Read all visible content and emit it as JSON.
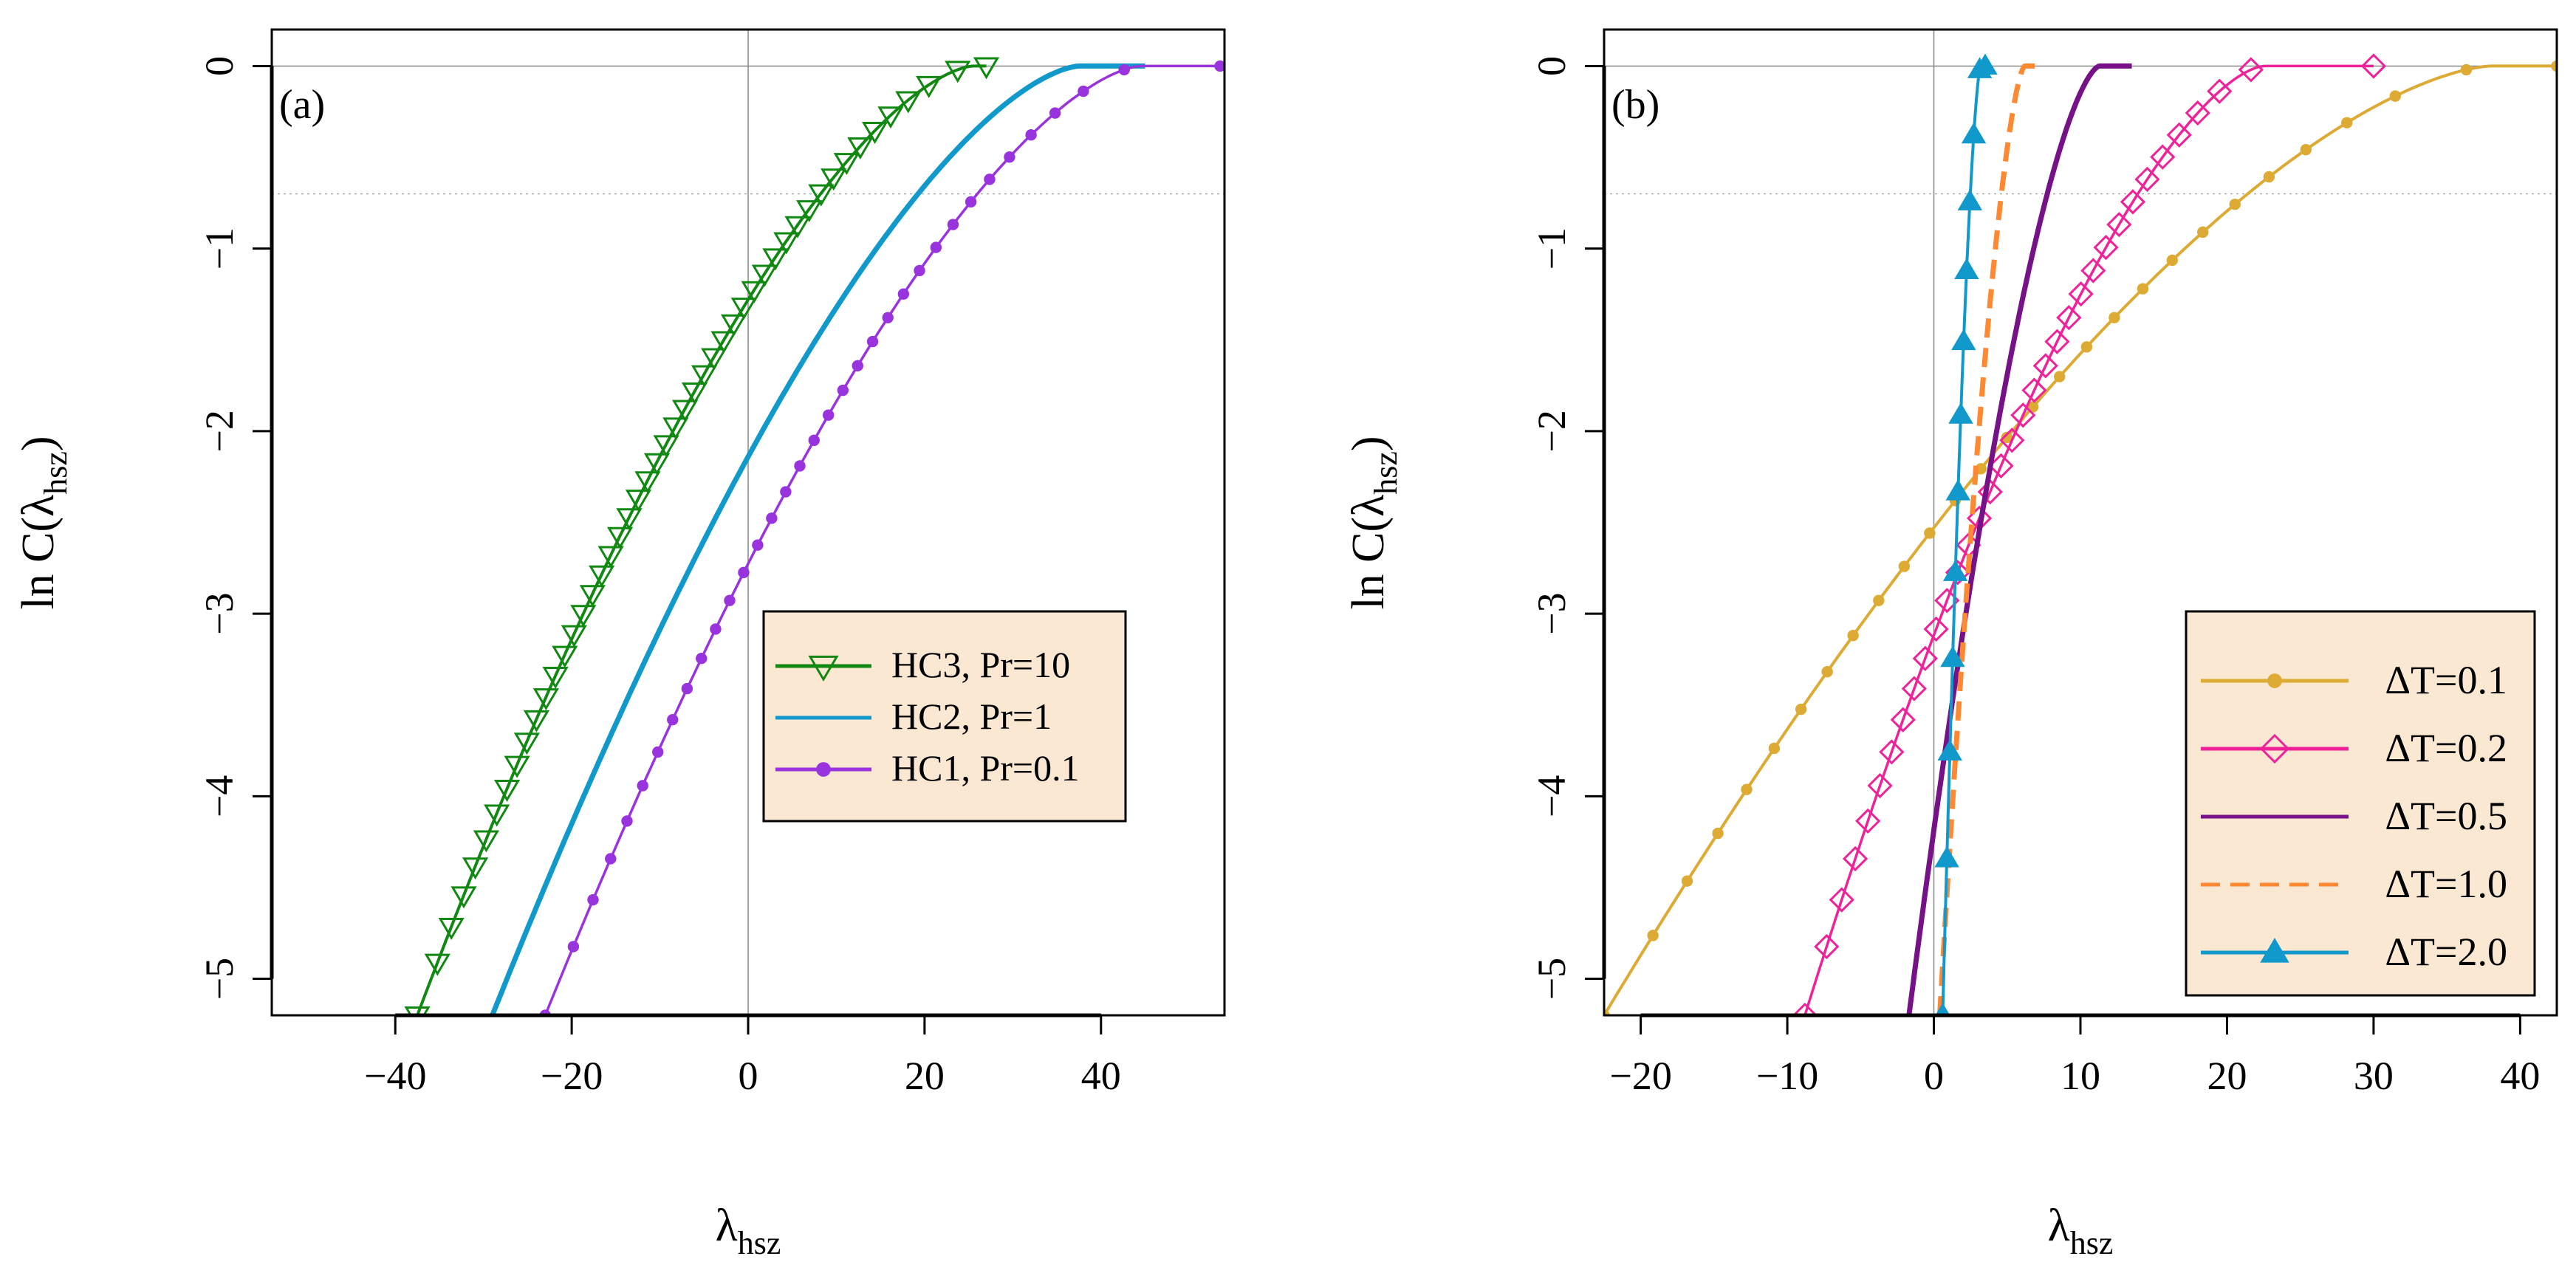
{
  "chart_data": [
    {
      "type": "line",
      "panel_label": "(a)",
      "xlabel_base": "λ",
      "xlabel_sub": "hsz",
      "ylabel_prefix": "ln C(λ",
      "ylabel_sub": "hsz",
      "ylabel_suffix": ")",
      "xlim": [
        -54,
        54
      ],
      "ylim": [
        -5.2,
        0.2
      ],
      "xticks": [
        -40,
        -20,
        0,
        20,
        40
      ],
      "xtick_labels": [
        "−40",
        "−20",
        "0",
        "20",
        "40"
      ],
      "yticks": [
        0,
        -1,
        -2,
        -3,
        -4,
        -5
      ],
      "ytick_labels": [
        "0",
        "−1",
        "−2",
        "−3",
        "−4",
        "−5"
      ],
      "reference_lines": {
        "vertical_x": 0,
        "horizontal_y": 0,
        "dotted_y": -0.7
      },
      "legend_position": "center-right",
      "series": [
        {
          "name": "HC3, Pr=10",
          "color": "#118811",
          "marker": "triangle-down-open",
          "x0": -37.5,
          "xs": 25.5,
          "xmax": 27,
          "density": 1
        },
        {
          "name": "HC2, Pr=1",
          "color": "#1199cc",
          "marker": "none",
          "x0": -29,
          "xs": 37.5,
          "xmax": 45,
          "density": 1
        },
        {
          "name": "HC1, Pr=0.1",
          "color": "#9933dd",
          "marker": "dot",
          "x0": -23,
          "xs": 44.5,
          "xmax": 53.5,
          "density": 1
        }
      ]
    },
    {
      "type": "line",
      "panel_label": "(b)",
      "xlabel_base": "λ",
      "xlabel_sub": "hsz",
      "ylabel_prefix": "ln C(λ",
      "ylabel_sub": "hsz",
      "ylabel_suffix": ")",
      "xlim": [
        -22.5,
        42.5
      ],
      "ylim": [
        -5.2,
        0.2
      ],
      "xticks": [
        -20,
        -10,
        0,
        10,
        20,
        30,
        40
      ],
      "xtick_labels": [
        "−20",
        "−10",
        "0",
        "10",
        "20",
        "30",
        "40"
      ],
      "yticks": [
        0,
        -1,
        -2,
        -3,
        -4,
        -5
      ],
      "ytick_labels": [
        "0",
        "−1",
        "−2",
        "−3",
        "−4",
        "−5"
      ],
      "reference_lines": {
        "vertical_x": 0,
        "horizontal_y": 0,
        "dotted_y": -0.7
      },
      "legend_position": "bottom-right",
      "series": [
        {
          "name": "ΔT=0.1",
          "color": "#ddaa33",
          "marker": "dot",
          "x0": -22.5,
          "xs": 38,
          "xmax": 42.5,
          "density": 1
        },
        {
          "name": "ΔT=0.2",
          "color": "#ee2299",
          "marker": "diamond-open",
          "x0": -8.8,
          "xs": 22.5,
          "xmax": 30,
          "density": 1
        },
        {
          "name": "ΔT=0.5",
          "color": "#771188",
          "marker": "none",
          "x0": -1.7,
          "xs": 11.3,
          "xmax": 13.5,
          "density": 1
        },
        {
          "name": "ΔT=1.0",
          "color": "#ff8833",
          "marker": "dash",
          "x0": 0.4,
          "xs": 6.2,
          "xmax": 7,
          "density": 1
        },
        {
          "name": "ΔT=2.0",
          "color": "#1199cc",
          "marker": "triangle-up-filled",
          "x0": 0.6,
          "xs": 3.2,
          "xmax": 3.5,
          "density": 1
        }
      ]
    }
  ]
}
